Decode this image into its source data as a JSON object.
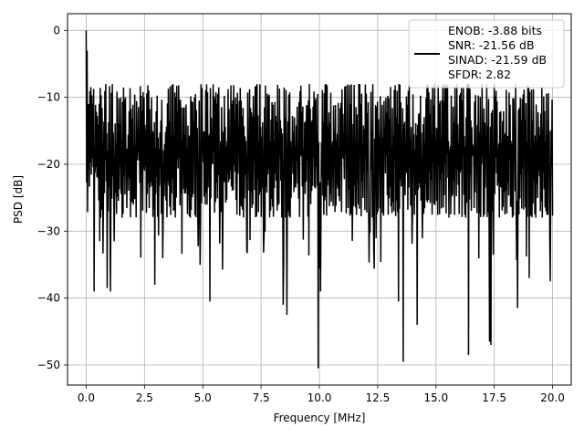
{
  "chart_data": {
    "type": "line",
    "title": "",
    "xlabel": "Frequency [MHz]",
    "ylabel": "PSD [dB]",
    "xlim": [
      -0.8,
      20.8
    ],
    "ylim": [
      -53.0,
      2.5
    ],
    "grid": true,
    "line_color": "#000000",
    "x_ticks": [
      0.0,
      2.5,
      5.0,
      7.5,
      10.0,
      12.5,
      15.0,
      17.5,
      20.0
    ],
    "x_tick_labels": [
      "0.0",
      "2.5",
      "5.0",
      "7.5",
      "10.0",
      "12.5",
      "15.0",
      "17.5",
      "20.0"
    ],
    "y_ticks": [
      0,
      -10,
      -20,
      -30,
      -40,
      -50
    ],
    "y_tick_labels": [
      "0",
      "−10",
      "−20",
      "−30",
      "−40",
      "−50"
    ],
    "legend": {
      "placement": "top-right",
      "lines": [
        "ENOB: -3.88 bits",
        "SNR: -21.56 dB",
        "SINAD: -21.59 dB",
        "SFDR: 2.82"
      ]
    },
    "series": [
      {
        "x_range": [
          0.0,
          20.0
        ],
        "n_points": 1000,
        "noise_floor_db": -18.0,
        "noise_upper_db": -8.0,
        "noise_lower_db": -28.0,
        "peaks": [
          [
            0.0,
            0.0
          ],
          [
            0.05,
            -3.0
          ],
          [
            0.1,
            -5.0
          ]
        ],
        "dips": [
          [
            0.35,
            -39.0
          ],
          [
            0.9,
            -38.5
          ],
          [
            1.05,
            -39.0
          ],
          [
            2.95,
            -38.0
          ],
          [
            5.3,
            -40.5
          ],
          [
            8.45,
            -41.0
          ],
          [
            8.6,
            -42.5
          ],
          [
            9.95,
            -50.5
          ],
          [
            10.05,
            -39.0
          ],
          [
            13.4,
            -40.5
          ],
          [
            13.6,
            -49.5
          ],
          [
            14.2,
            -44.0
          ],
          [
            16.4,
            -48.5
          ],
          [
            17.3,
            -46.5
          ],
          [
            17.35,
            -47.0
          ],
          [
            18.5,
            -41.5
          ],
          [
            19.0,
            -37.0
          ],
          [
            19.9,
            -37.5
          ]
        ]
      }
    ]
  }
}
